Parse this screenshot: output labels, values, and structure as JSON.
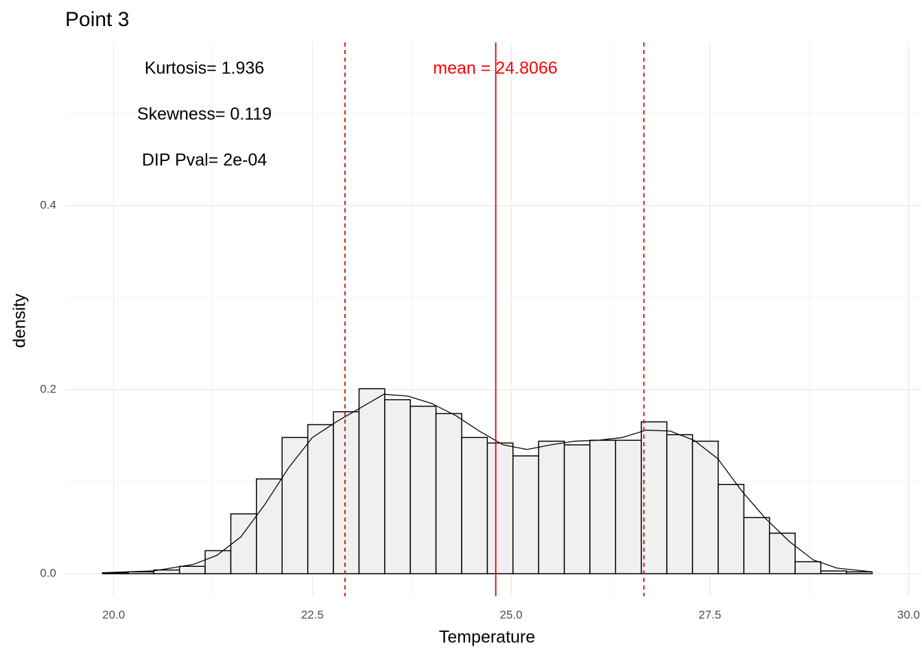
{
  "chart_data": {
    "type": "histogram",
    "title": "Point 3",
    "x_label": "Temperature",
    "y_label": "density",
    "bins": [
      19.86,
      20.183,
      20.505,
      20.828,
      21.151,
      21.474,
      21.796,
      22.119,
      22.442,
      22.764,
      23.087,
      23.41,
      23.732,
      24.055,
      24.378,
      24.701,
      25.023,
      25.346,
      25.669,
      25.991,
      26.314,
      26.637,
      26.959,
      27.282,
      27.605,
      27.928,
      28.25,
      28.573,
      28.896,
      29.218,
      29.541
    ],
    "values": [
      0.001,
      0.002,
      0.004,
      0.008,
      0.025,
      0.065,
      0.103,
      0.148,
      0.162,
      0.176,
      0.201,
      0.189,
      0.182,
      0.174,
      0.148,
      0.142,
      0.128,
      0.144,
      0.14,
      0.145,
      0.145,
      0.165,
      0.151,
      0.144,
      0.097,
      0.061,
      0.044,
      0.013,
      0.003,
      0.002
    ],
    "bar_fill": "#f0f0f0",
    "bar_stroke": "#000000",
    "density": {
      "x": [
        19.86,
        20.5,
        21.0,
        21.3,
        21.6,
        21.9,
        22.2,
        22.5,
        22.8,
        23.1,
        23.4,
        23.7,
        24.0,
        24.3,
        24.6,
        24.9,
        25.2,
        25.5,
        25.8,
        26.1,
        26.4,
        26.7,
        27.0,
        27.3,
        27.6,
        27.9,
        28.2,
        28.5,
        28.8,
        29.1,
        29.54
      ],
      "y": [
        0.001,
        0.003,
        0.01,
        0.02,
        0.04,
        0.075,
        0.115,
        0.148,
        0.165,
        0.18,
        0.195,
        0.193,
        0.185,
        0.172,
        0.155,
        0.14,
        0.135,
        0.14,
        0.144,
        0.145,
        0.148,
        0.156,
        0.155,
        0.145,
        0.125,
        0.09,
        0.06,
        0.035,
        0.015,
        0.006,
        0.002
      ],
      "color": "#000000"
    },
    "mean_line": 24.8066,
    "sd_lines": [
      22.91,
      26.67
    ],
    "line_color": "#e00000",
    "annotations": [
      {
        "text": "Kurtosis= 1.936",
        "color": "#000000"
      },
      {
        "text": "Skewness= 0.119",
        "color": "#000000"
      },
      {
        "text": "DIP Pval= 2e-04",
        "color": "#000000"
      },
      {
        "text": "mean = 24.8066",
        "color": "#ff0000"
      }
    ],
    "xlim": [
      19.39,
      30.16
    ],
    "ylim": [
      -0.0246,
      0.5773
    ],
    "xticks": [
      {
        "value": 20,
        "label": "20.0"
      },
      {
        "value": 22.5,
        "label": "22.5"
      },
      {
        "value": 25,
        "label": "25.0"
      },
      {
        "value": 27.5,
        "label": "27.5"
      },
      {
        "value": 30,
        "label": "30.0"
      }
    ],
    "yticks": [
      {
        "value": 0,
        "label": "0.0"
      },
      0.2,
      0.4
    ],
    "x_minor_grid": [
      21.25,
      23.75,
      26.25,
      28.75
    ],
    "y_minor_grid": [
      0.1,
      0.3,
      0.5
    ],
    "grid": true
  }
}
